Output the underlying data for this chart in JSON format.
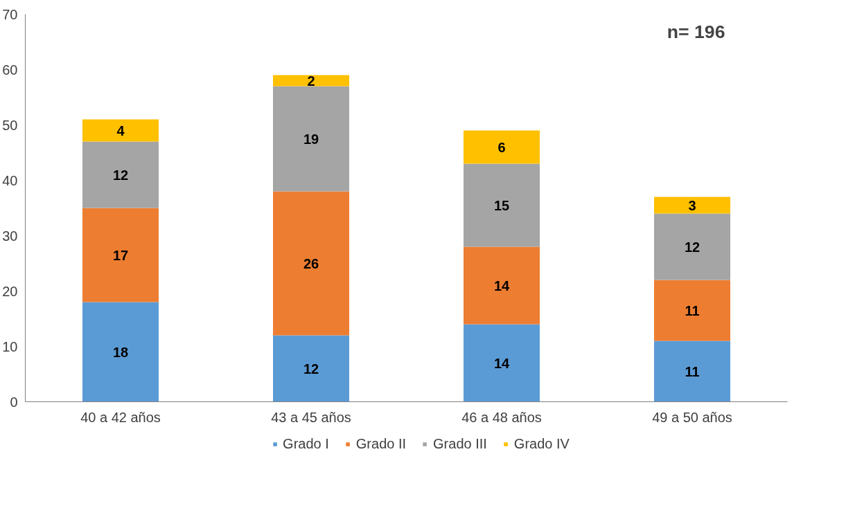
{
  "chart_data": {
    "type": "bar",
    "stacked": true,
    "categories": [
      "40 a 42 años",
      "43 a 45 años",
      "46 a 48 años",
      "49 a 50 años"
    ],
    "series": [
      {
        "name": "Grado I",
        "color": "#5b9bd5",
        "values": [
          18,
          12,
          14,
          11
        ]
      },
      {
        "name": "Grado II",
        "color": "#ed7d31",
        "values": [
          17,
          26,
          14,
          11
        ]
      },
      {
        "name": "Grado III",
        "color": "#a5a5a5",
        "values": [
          12,
          19,
          15,
          12
        ]
      },
      {
        "name": "Grado IV",
        "color": "#ffc000",
        "values": [
          4,
          2,
          6,
          3
        ]
      }
    ],
    "ylim": [
      0,
      70
    ],
    "yticks": [
      0,
      10,
      20,
      30,
      40,
      50,
      60,
      70
    ],
    "grid": false,
    "legend": "bottom",
    "data_labels": true,
    "annotations": [
      "n= 196"
    ]
  }
}
